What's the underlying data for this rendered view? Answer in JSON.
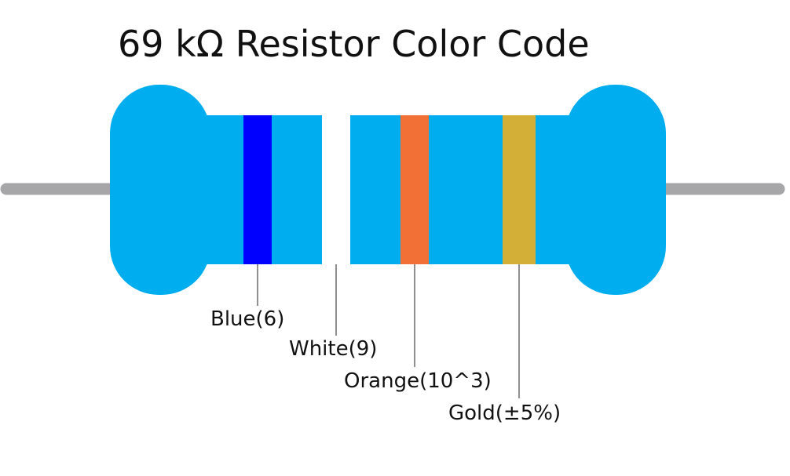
{
  "title": "69 kΩ Resistor Color Code",
  "colors": {
    "body": "#00aeef",
    "lead": "#a6a6a9",
    "leader_line": "#222222"
  },
  "bands": [
    {
      "label": "Blue(6)",
      "color": "#0000ff"
    },
    {
      "label": "White(9)",
      "color": "#ffffff"
    },
    {
      "label": "Orange(10^3)",
      "color": "#f26f35"
    },
    {
      "label": "Gold(±5%)",
      "color": "#d4af37"
    }
  ]
}
